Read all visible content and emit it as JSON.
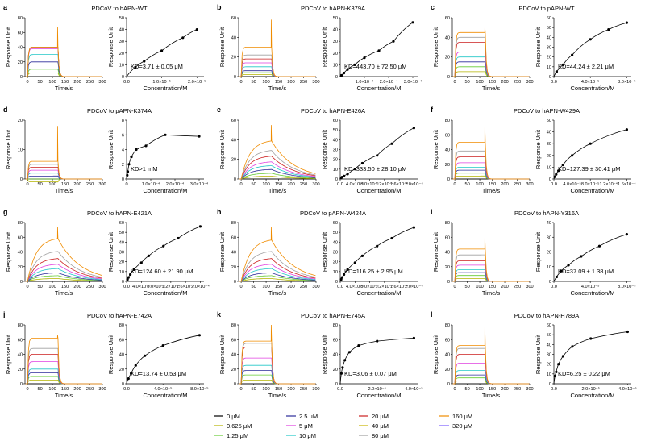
{
  "chart_data": [
    {
      "letter": "a",
      "title": "PDCoV to hAPN-WT",
      "kd": "KD=3.71 ± 0.05 μM",
      "sens_ymax": 80,
      "sens_yticks": [
        0,
        20,
        40,
        60,
        80
      ],
      "sens_plateaus": [
        0,
        5,
        10,
        20,
        30,
        38,
        40,
        40,
        40
      ],
      "sens_spike": 68,
      "sens_off": "fast",
      "aff_ymax": 50,
      "aff_yticks": [
        0,
        10,
        20,
        30,
        40,
        50
      ],
      "aff_xmax": 2.2e-05,
      "aff_xticks": [
        {
          "v": 0,
          "l": "0.0"
        },
        {
          "v": 1e-05,
          "l": "1.0×10⁻⁵"
        },
        {
          "v": 2e-05,
          "l": "2.0×10⁻⁵"
        }
      ],
      "aff_points": [
        [
          2.5e-06,
          8
        ],
        [
          5e-06,
          13
        ],
        [
          1e-05,
          22
        ],
        [
          1.6e-05,
          33
        ],
        [
          2e-05,
          40
        ]
      ]
    },
    {
      "letter": "b",
      "title": "PDCoV to hAPN-K379A",
      "kd": "KD=443.70 ± 72.50 μM",
      "sens_ymax": 60,
      "sens_yticks": [
        0,
        20,
        40,
        60
      ],
      "sens_plateaus": [
        0,
        2,
        4,
        6,
        10,
        14,
        18,
        22,
        30
      ],
      "sens_spike": 58,
      "sens_off": "fast",
      "aff_ymax": 50,
      "aff_yticks": [
        0,
        10,
        20,
        30,
        40,
        50
      ],
      "aff_xmax": 0.00032,
      "aff_xticks": [
        {
          "v": 0.0001,
          "l": "1.0×10⁻⁴"
        },
        {
          "v": 0.0002,
          "l": "2.0×10⁻⁴"
        },
        {
          "v": 0.0003,
          "l": "3.0×10⁻⁴"
        }
      ],
      "aff_points": [
        [
          5e-06,
          1
        ],
        [
          1.5e-05,
          3
        ],
        [
          3e-05,
          6
        ],
        [
          6e-05,
          10
        ],
        [
          0.0001,
          16
        ],
        [
          0.00016,
          22
        ],
        [
          0.00022,
          30
        ],
        [
          0.0003,
          46
        ]
      ]
    },
    {
      "letter": "c",
      "title": "PDCoV to pAPN-WT",
      "kd": "KD=44.24 ± 2.21 μM",
      "sens_ymax": 60,
      "sens_yticks": [
        0,
        20,
        40,
        60
      ],
      "sens_plateaus": [
        0,
        5,
        10,
        15,
        20,
        25,
        35,
        40,
        45
      ],
      "sens_spike": 50,
      "sens_off": "fast",
      "aff_ymax": 60,
      "aff_yticks": [
        0,
        10,
        20,
        30,
        40,
        50,
        60
      ],
      "aff_xmax": 8.5e-05,
      "aff_xticks": [
        {
          "v": 0,
          "l": "0.0"
        },
        {
          "v": 4e-05,
          "l": "4.0×10⁻⁵"
        },
        {
          "v": 8e-05,
          "l": "8.0×10⁻⁵"
        }
      ],
      "aff_points": [
        [
          3e-06,
          5
        ],
        [
          1e-05,
          12
        ],
        [
          2e-05,
          22
        ],
        [
          4e-05,
          38
        ],
        [
          6e-05,
          48
        ],
        [
          8e-05,
          55
        ]
      ]
    },
    {
      "letter": "d",
      "title": "PDCoV to pAPN-K374A",
      "kd": "KD>1 mM",
      "sens_ymax": 20,
      "sens_yticks": [
        0,
        10,
        20
      ],
      "sens_plateaus": [
        0,
        -1,
        0,
        1,
        2,
        3,
        4,
        5,
        6
      ],
      "sens_spike": 18,
      "sens_off": "fast",
      "aff_ymax": 8,
      "aff_yticks": [
        0,
        2,
        4,
        6,
        8
      ],
      "aff_xmax": 0.00032,
      "aff_xticks": [
        {
          "v": 0,
          "l": "0"
        },
        {
          "v": 0.0001,
          "l": "1.0×10⁻⁴"
        },
        {
          "v": 0.0002,
          "l": "2.0×10⁻⁴"
        },
        {
          "v": 0.0003,
          "l": "3.0×10⁻⁴"
        }
      ],
      "aff_points": [
        [
          2.5e-06,
          0.5
        ],
        [
          5e-06,
          1
        ],
        [
          1e-05,
          2
        ],
        [
          2e-05,
          3
        ],
        [
          4e-05,
          4
        ],
        [
          8e-05,
          4.5
        ],
        [
          0.00016,
          6
        ],
        [
          0.0003,
          5.8
        ]
      ]
    },
    {
      "letter": "e",
      "title": "PDCoV to hAPN-E426A",
      "kd": "KD=333.50 ± 28.10 μM",
      "sens_ymax": 60,
      "sens_yticks": [
        0,
        20,
        40,
        60
      ],
      "sens_plateaus": [
        0,
        3,
        6,
        10,
        14,
        18,
        24,
        30,
        40
      ],
      "sens_spike": 55,
      "sens_off": "slow",
      "aff_ymax": 60,
      "aff_yticks": [
        0,
        10,
        20,
        30,
        40,
        50,
        60
      ],
      "aff_xmax": 0.00021,
      "aff_xticks": [
        {
          "v": 0,
          "l": "0.0"
        },
        {
          "v": 4e-05,
          "l": "4.0×10⁻⁵"
        },
        {
          "v": 8e-05,
          "l": "8.0×10⁻⁵"
        },
        {
          "v": 0.00012,
          "l": "1.2×10⁻⁴"
        },
        {
          "v": 0.00016,
          "l": "1.6×10⁻⁴"
        },
        {
          "v": 0.0002,
          "l": "2.0×10⁻⁴"
        }
      ],
      "aff_points": [
        [
          2.5e-06,
          1
        ],
        [
          5e-06,
          2
        ],
        [
          1e-05,
          3
        ],
        [
          2e-05,
          5
        ],
        [
          4e-05,
          10
        ],
        [
          6e-05,
          16
        ],
        [
          0.0001,
          24
        ],
        [
          0.00014,
          36
        ],
        [
          0.0002,
          52
        ]
      ]
    },
    {
      "letter": "f",
      "title": "PDCoV to hAPN-W429A",
      "kd": "KD=127.39 ± 30.41 μM",
      "sens_ymax": 80,
      "sens_yticks": [
        0,
        20,
        40,
        60,
        80
      ],
      "sens_plateaus": [
        0,
        4,
        8,
        12,
        16,
        22,
        30,
        38,
        50
      ],
      "sens_spike": 72,
      "sens_off": "fast",
      "aff_ymax": 50,
      "aff_yticks": [
        0,
        10,
        20,
        30,
        40,
        50
      ],
      "aff_xmax": 0.00017,
      "aff_xticks": [
        {
          "v": 0,
          "l": "0.0"
        },
        {
          "v": 4e-05,
          "l": "4.0×10⁻⁵"
        },
        {
          "v": 8e-05,
          "l": "8.0×10⁻⁵"
        },
        {
          "v": 0.00012,
          "l": "1.2×10⁻⁴"
        },
        {
          "v": 0.00016,
          "l": "1.6×10⁻⁴"
        }
      ],
      "aff_points": [
        [
          2.5e-06,
          2
        ],
        [
          5e-06,
          4
        ],
        [
          1e-05,
          7
        ],
        [
          2e-05,
          12
        ],
        [
          4e-05,
          20
        ],
        [
          8e-05,
          30
        ],
        [
          0.00016,
          42
        ]
      ]
    },
    {
      "letter": "g",
      "title": "PDCoV to hAPN-E421A",
      "kd": "KD=124.60 ± 21.90 μM",
      "sens_ymax": 80,
      "sens_yticks": [
        0,
        20,
        40,
        60,
        80
      ],
      "sens_plateaus": [
        0,
        4,
        8,
        12,
        18,
        24,
        32,
        42,
        60
      ],
      "sens_spike": 74,
      "sens_off": "slow",
      "aff_ymax": 60,
      "aff_yticks": [
        0,
        10,
        20,
        30,
        40,
        50,
        60
      ],
      "aff_xmax": 0.00021,
      "aff_xticks": [
        {
          "v": 0,
          "l": "0.0"
        },
        {
          "v": 4e-05,
          "l": "4.0×10⁻⁵"
        },
        {
          "v": 8e-05,
          "l": "8.0×10⁻⁵"
        },
        {
          "v": 0.00012,
          "l": "1.2×10⁻⁴"
        },
        {
          "v": 0.00016,
          "l": "1.6×10⁻⁴"
        },
        {
          "v": 0.0002,
          "l": "2.0×10⁻⁴"
        }
      ],
      "aff_points": [
        [
          2.5e-06,
          2
        ],
        [
          5e-06,
          4
        ],
        [
          1e-05,
          7
        ],
        [
          2e-05,
          12
        ],
        [
          4e-05,
          19
        ],
        [
          6e-05,
          26
        ],
        [
          0.0001,
          36
        ],
        [
          0.00014,
          44
        ],
        [
          0.0002,
          56
        ]
      ]
    },
    {
      "letter": "h",
      "title": "PDCoV to pAPN-W424A",
      "kd": "KD=116.25 ± 2.95 μM",
      "sens_ymax": 80,
      "sens_yticks": [
        0,
        20,
        40,
        60,
        80
      ],
      "sens_plateaus": [
        0,
        4,
        8,
        12,
        18,
        24,
        32,
        42,
        58
      ],
      "sens_spike": 74,
      "sens_off": "slow",
      "aff_ymax": 60,
      "aff_yticks": [
        0,
        10,
        20,
        30,
        40,
        50,
        60
      ],
      "aff_xmax": 0.00021,
      "aff_xticks": [
        {
          "v": 0,
          "l": "0.0"
        },
        {
          "v": 4e-05,
          "l": "4.0×10⁻⁵"
        },
        {
          "v": 8e-05,
          "l": "8.0×10⁻⁵"
        },
        {
          "v": 0.00012,
          "l": "1.2×10⁻⁴"
        },
        {
          "v": 0.00016,
          "l": "1.6×10⁻⁴"
        },
        {
          "v": 0.0002,
          "l": "2.0×10⁻⁴"
        }
      ],
      "aff_points": [
        [
          2.5e-06,
          2
        ],
        [
          5e-06,
          4
        ],
        [
          1e-05,
          7
        ],
        [
          2e-05,
          12
        ],
        [
          4e-05,
          19
        ],
        [
          6e-05,
          26
        ],
        [
          0.0001,
          36
        ],
        [
          0.00014,
          44
        ],
        [
          0.0002,
          55
        ]
      ]
    },
    {
      "letter": "i",
      "title": "PDCoV to hAPN-Y316A",
      "kd": "KD=37.09 ± 1.38 μM",
      "sens_ymax": 80,
      "sens_yticks": [
        0,
        20,
        40,
        60,
        80
      ],
      "sens_plateaus": [
        0,
        4,
        8,
        12,
        16,
        22,
        28,
        36,
        44
      ],
      "sens_spike": 60,
      "sens_off": "fast",
      "aff_ymax": 40,
      "aff_yticks": [
        0,
        10,
        20,
        30,
        40
      ],
      "aff_xmax": 8.5e-05,
      "aff_xticks": [
        {
          "v": 0,
          "l": "0.0"
        },
        {
          "v": 4e-05,
          "l": "4.0×10⁻⁵"
        },
        {
          "v": 8e-05,
          "l": "8.0×10⁻⁵"
        }
      ],
      "aff_points": [
        [
          3e-06,
          3
        ],
        [
          8e-06,
          7
        ],
        [
          1.6e-05,
          11
        ],
        [
          3e-05,
          17
        ],
        [
          5e-05,
          24
        ],
        [
          8e-05,
          32
        ]
      ]
    },
    {
      "letter": "j",
      "title": "PDCoV to hAPN-E742A",
      "kd": "KD=13.74 ± 0.53 μM",
      "sens_ymax": 80,
      "sens_yticks": [
        0,
        20,
        40,
        60,
        80
      ],
      "sens_plateaus": [
        0,
        5,
        10,
        15,
        20,
        30,
        40,
        48,
        62
      ],
      "sens_spike": 66,
      "sens_off": "fast",
      "aff_ymax": 80,
      "aff_yticks": [
        0,
        20,
        40,
        60,
        80
      ],
      "aff_xmax": 8.5e-05,
      "aff_xticks": [
        {
          "v": 0,
          "l": "0.0"
        },
        {
          "v": 4e-05,
          "l": "4.0×10⁻⁵"
        },
        {
          "v": 8e-05,
          "l": "8.0×10⁻⁵"
        }
      ],
      "aff_points": [
        [
          2e-06,
          7
        ],
        [
          5e-06,
          14
        ],
        [
          1e-05,
          25
        ],
        [
          2e-05,
          38
        ],
        [
          4e-05,
          52
        ],
        [
          8e-05,
          66
        ]
      ]
    },
    {
      "letter": "k",
      "title": "PDCoV to hAPN-E745A",
      "kd": "KD=3.06 ± 0.07 μM",
      "sens_ymax": 80,
      "sens_yticks": [
        0,
        20,
        40,
        60,
        80
      ],
      "sens_plateaus": [
        0,
        5,
        12,
        18,
        25,
        35,
        50,
        55,
        58
      ],
      "sens_spike": 80,
      "sens_off": "fast",
      "aff_ymax": 80,
      "aff_yticks": [
        0,
        20,
        40,
        60,
        80
      ],
      "aff_xmax": 4.2e-05,
      "aff_xticks": [
        {
          "v": 0,
          "l": "0.0"
        },
        {
          "v": 2e-05,
          "l": "2.0×10⁻⁵"
        },
        {
          "v": 4e-05,
          "l": "4.0×10⁻⁵"
        }
      ],
      "aff_points": [
        [
          6e-07,
          14
        ],
        [
          1.25e-06,
          22
        ],
        [
          2.5e-06,
          32
        ],
        [
          5e-06,
          43
        ],
        [
          1e-05,
          52
        ],
        [
          2e-05,
          58
        ],
        [
          4e-05,
          62
        ]
      ]
    },
    {
      "letter": "l",
      "title": "PDCoV to hAPN-H789A",
      "kd": "KD=6.25 ± 0.22 μM",
      "sens_ymax": 80,
      "sens_yticks": [
        0,
        20,
        40,
        60,
        80
      ],
      "sens_plateaus": [
        0,
        4,
        8,
        12,
        18,
        28,
        40,
        48,
        52
      ],
      "sens_spike": 78,
      "sens_off": "fast",
      "aff_ymax": 60,
      "aff_yticks": [
        0,
        10,
        20,
        30,
        40,
        50,
        60
      ],
      "aff_xmax": 4.2e-05,
      "aff_xticks": [
        {
          "v": 0,
          "l": "0.0"
        },
        {
          "v": 2e-05,
          "l": "2.0×10⁻⁵"
        },
        {
          "v": 4e-05,
          "l": "4.0×10⁻⁵"
        }
      ],
      "aff_points": [
        [
          6e-07,
          8
        ],
        [
          1.25e-06,
          12
        ],
        [
          2.5e-06,
          20
        ],
        [
          5e-06,
          28
        ],
        [
          1e-05,
          38
        ],
        [
          2e-05,
          46
        ],
        [
          4e-05,
          53
        ]
      ]
    }
  ],
  "sensorgram_axis": {
    "xlabel": "Time/s",
    "ylabel": "Response Unit",
    "xticks": [
      0,
      50,
      100,
      150,
      200,
      250,
      300
    ],
    "xmin": -10,
    "xmax": 300
  },
  "affinity_axis": {
    "xlabel": "Concentration/M",
    "ylabel": "Response Unit"
  },
  "legend": [
    {
      "label": "0 μM",
      "color": "#000000"
    },
    {
      "label": "0.625 μM",
      "color": "#b3b300"
    },
    {
      "label": "1.25 μM",
      "color": "#66cc33"
    },
    {
      "label": "2.5 μM",
      "color": "#2b2b99"
    },
    {
      "label": "5 μM",
      "color": "#e040e0"
    },
    {
      "label": "10 μM",
      "color": "#22c7c7"
    },
    {
      "label": "20 μM",
      "color": "#cc1f1f"
    },
    {
      "label": "40 μM",
      "color": "#c8b400"
    },
    {
      "label": "80 μM",
      "color": "#a0a0a0"
    },
    {
      "label": "160 μM",
      "color": "#f08c00"
    },
    {
      "label": "320 μM",
      "color": "#7a5cff"
    }
  ]
}
